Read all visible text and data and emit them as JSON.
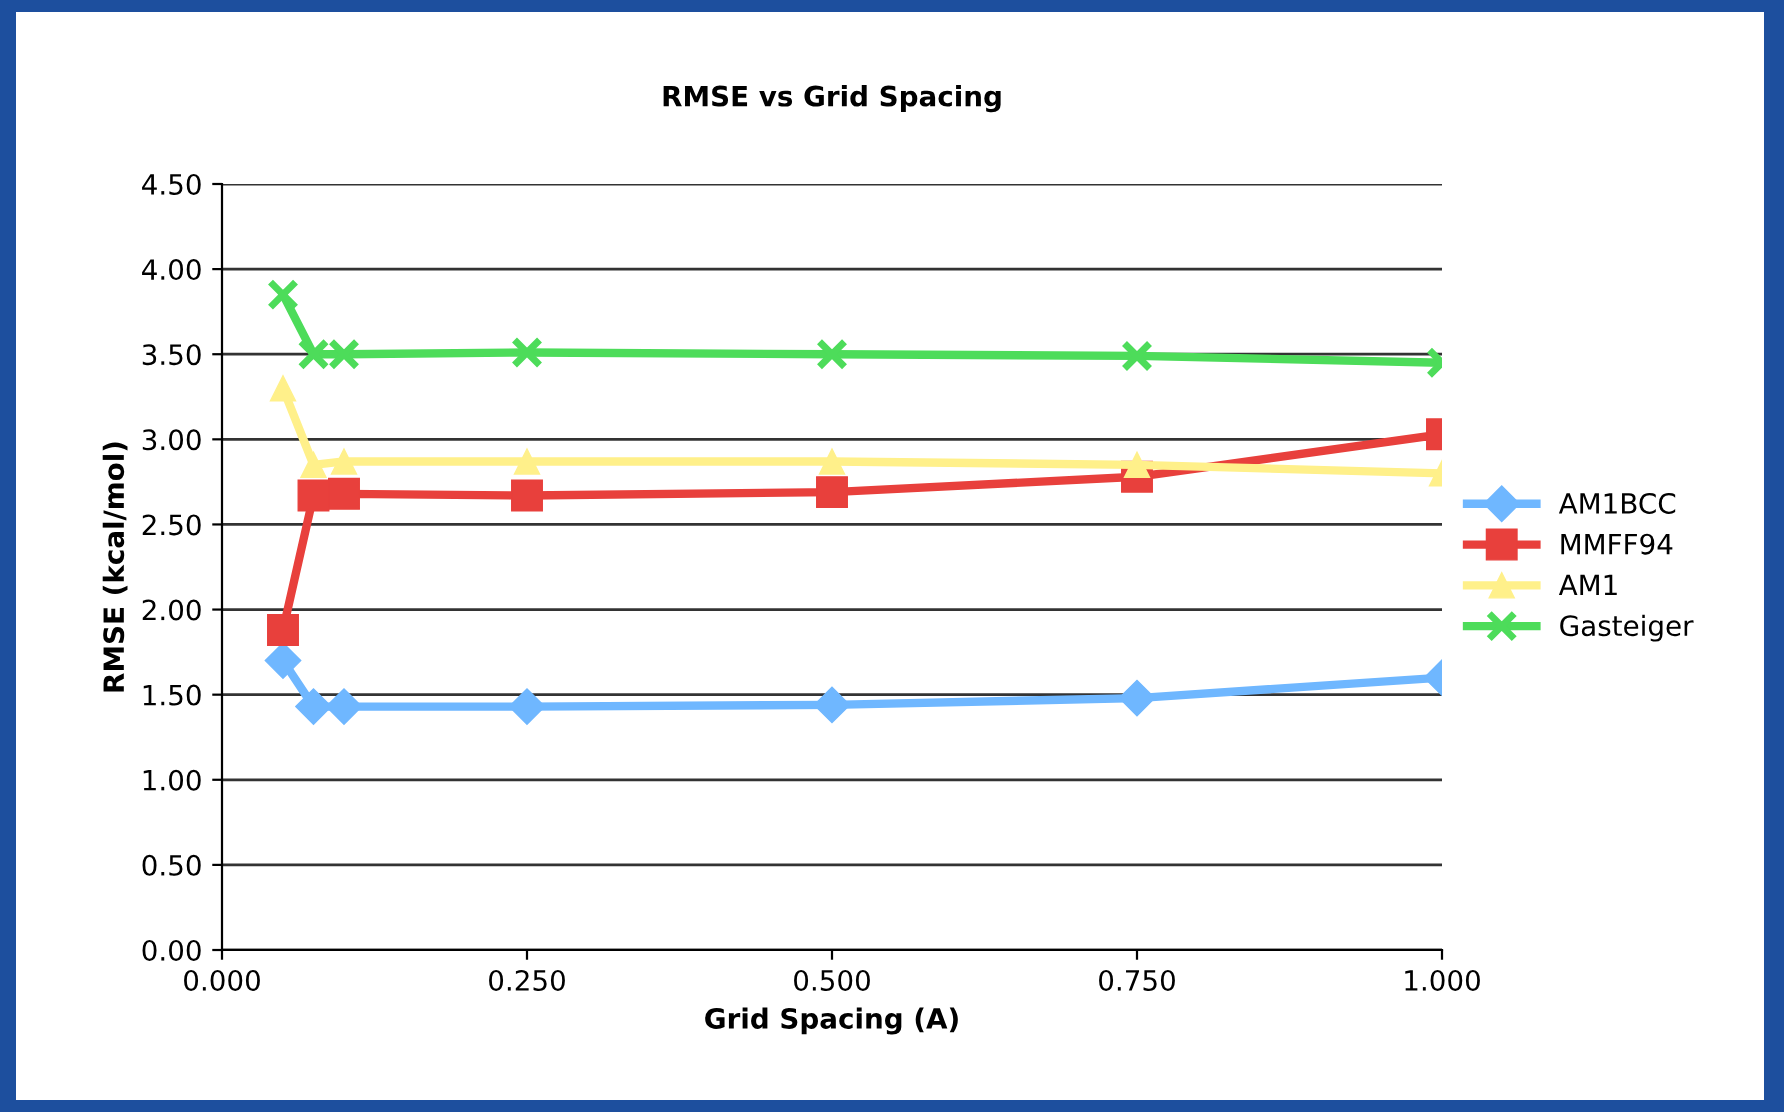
{
  "chart_data": {
    "type": "line",
    "title": "RMSE vs Grid Spacing",
    "xlabel": "Grid Spacing (A)",
    "ylabel": "RMSE (kcal/mol)",
    "x": [
      0.05,
      0.075,
      0.1,
      0.25,
      0.5,
      0.75,
      1.0
    ],
    "series": [
      {
        "name": "AM1BCC",
        "color": "#6fb7ff",
        "marker": "diamond",
        "values": [
          1.7,
          1.43,
          1.43,
          1.43,
          1.44,
          1.48,
          1.6
        ]
      },
      {
        "name": "MMFF94",
        "color": "#e8403c",
        "marker": "square",
        "values": [
          1.88,
          2.67,
          2.68,
          2.67,
          2.69,
          2.78,
          3.03
        ]
      },
      {
        "name": "AM1",
        "color": "#fff08a",
        "marker": "triangle",
        "values": [
          3.3,
          2.85,
          2.87,
          2.87,
          2.87,
          2.85,
          2.8
        ]
      },
      {
        "name": "Gasteiger",
        "color": "#4ddc5a",
        "marker": "cross",
        "values": [
          3.85,
          3.5,
          3.5,
          3.51,
          3.5,
          3.49,
          3.45
        ]
      }
    ],
    "xlim": [
      0,
      1
    ],
    "xticks": [
      {
        "value": 0,
        "label": "0.000"
      },
      {
        "value": 0.25,
        "label": "0.250"
      },
      {
        "value": 0.5,
        "label": "0.500"
      },
      {
        "value": 0.75,
        "label": "0.750"
      },
      {
        "value": 1,
        "label": "1.000"
      }
    ],
    "ylim": [
      0,
      4.5
    ],
    "yticks": [
      {
        "value": 0,
        "label": "0.00"
      },
      {
        "value": 0.5,
        "label": "0.50"
      },
      {
        "value": 1,
        "label": "1.00"
      },
      {
        "value": 1.5,
        "label": "1.50"
      },
      {
        "value": 2,
        "label": "2.00"
      },
      {
        "value": 2.5,
        "label": "2.50"
      },
      {
        "value": 3,
        "label": "3.00"
      },
      {
        "value": 3.5,
        "label": "3.50"
      },
      {
        "value": 4,
        "label": "4.00"
      },
      {
        "value": 4.5,
        "label": "4.50"
      }
    ],
    "grid": "y",
    "legend": "right",
    "line_style": "solid"
  }
}
